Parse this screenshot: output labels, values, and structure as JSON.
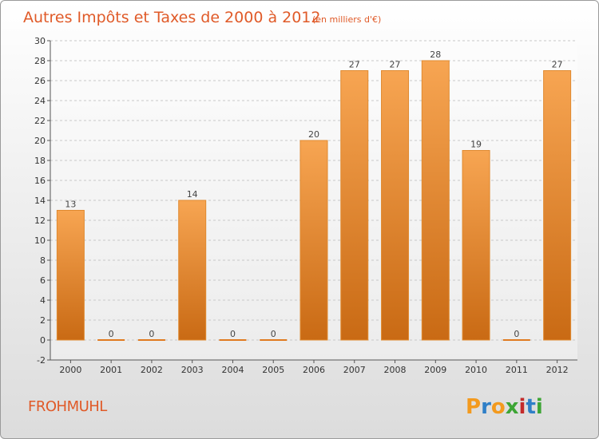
{
  "chart_data": {
    "type": "bar",
    "title": "Autres Impôts et Taxes de 2000 à 2012",
    "subtitle": "(en milliers d'€)",
    "categories": [
      "2000",
      "2001",
      "2002",
      "2003",
      "2004",
      "2005",
      "2006",
      "2007",
      "2008",
      "2009",
      "2010",
      "2011",
      "2012"
    ],
    "values": [
      13,
      0,
      0,
      14,
      0,
      0,
      20,
      27,
      27,
      28,
      19,
      0,
      27
    ],
    "ylim": [
      -2,
      30
    ],
    "yticks": [
      -2,
      0,
      2,
      4,
      6,
      8,
      10,
      12,
      14,
      16,
      18,
      20,
      22,
      24,
      26,
      28,
      30
    ],
    "grid": true,
    "bar_color_top": "#f7a552",
    "bar_color_bottom": "#c96a14",
    "xlabel": "",
    "ylabel": ""
  },
  "commune": "FROHMUHL",
  "brand": {
    "letters": [
      "P",
      "r",
      "o",
      "x",
      "i",
      "t",
      "i"
    ],
    "colors": [
      "#f39a1e",
      "#2f7fc7",
      "#f39a1e",
      "#3da535",
      "#c42b2b",
      "#2f7fc7",
      "#3da535"
    ]
  }
}
